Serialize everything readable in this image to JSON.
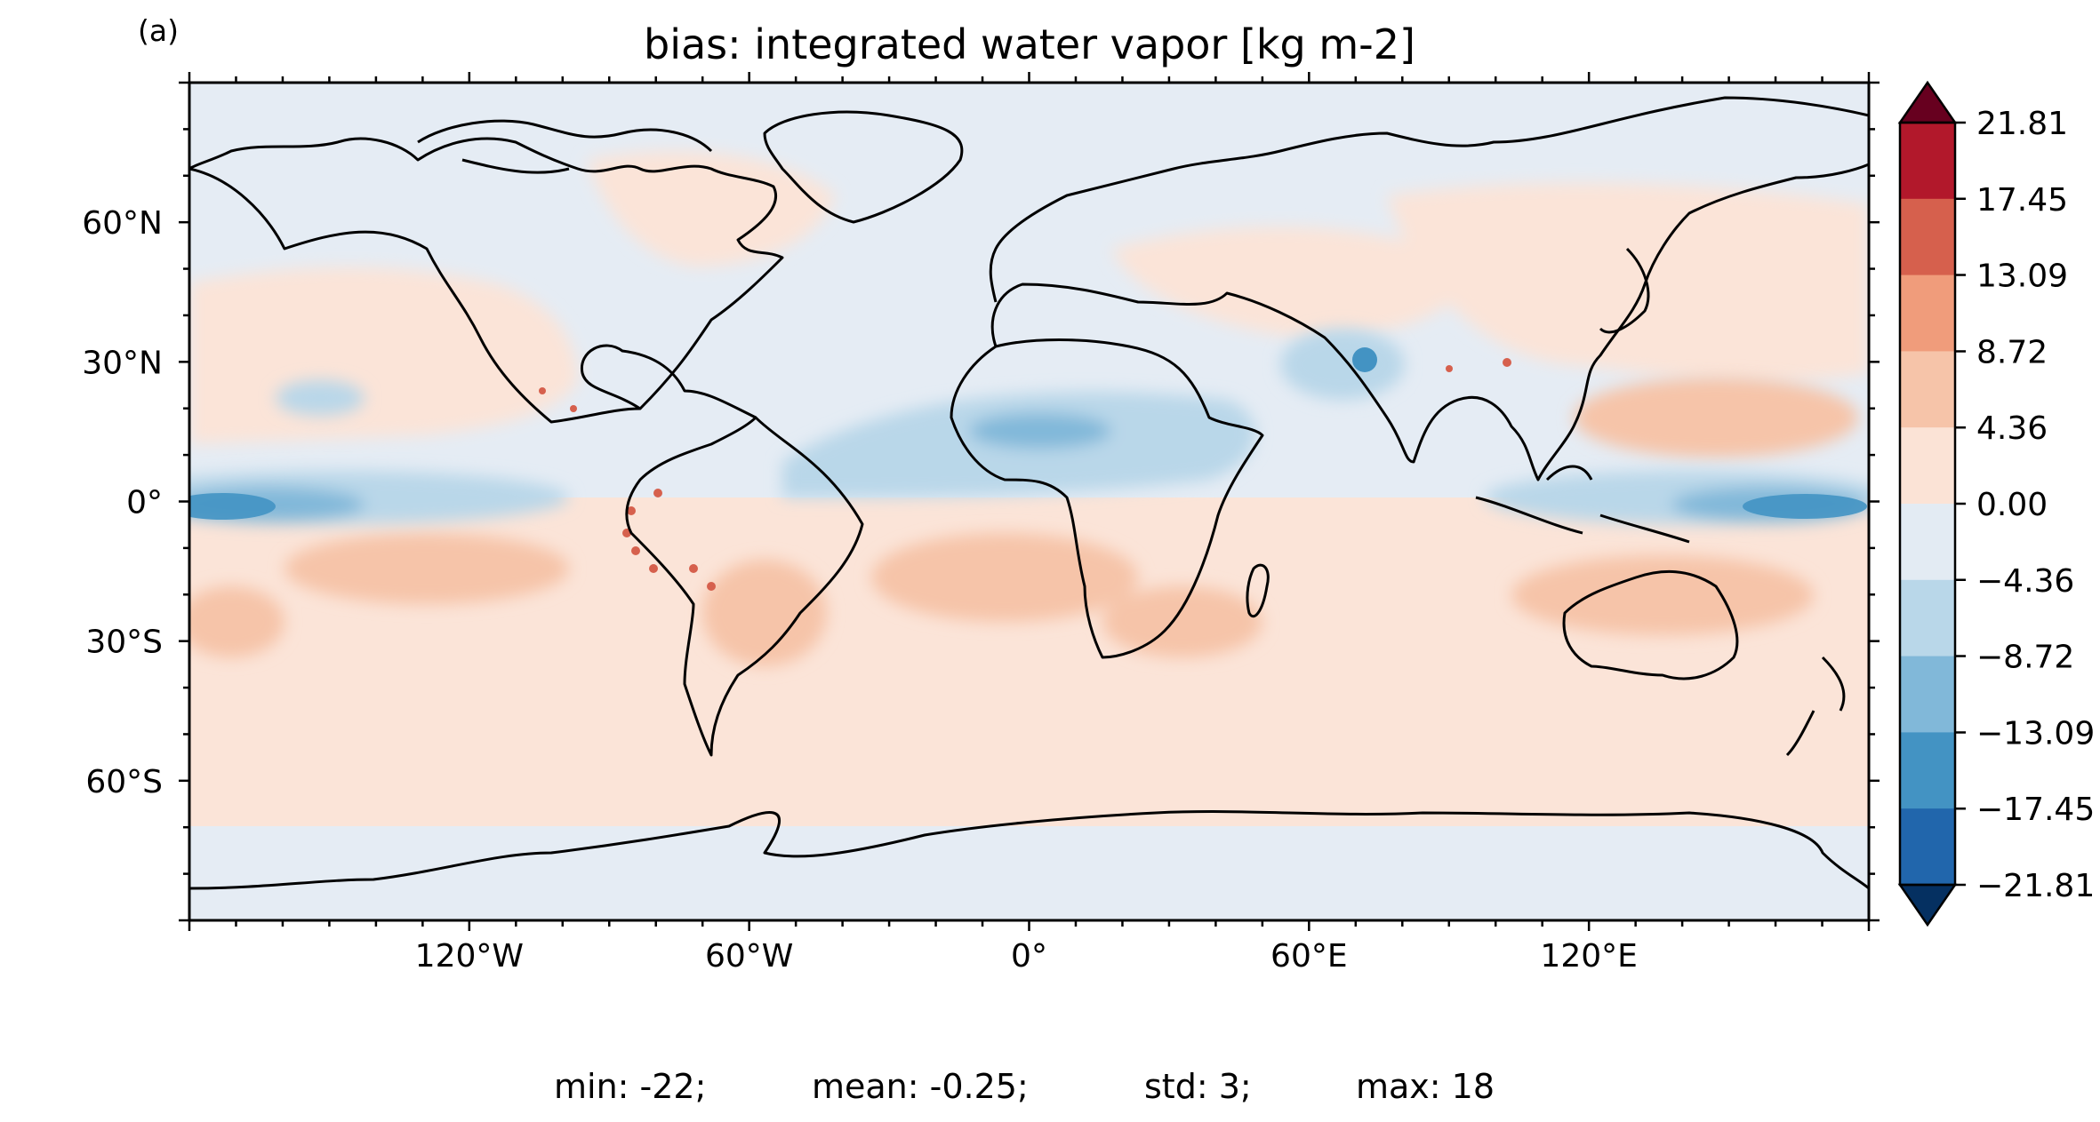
{
  "figure": {
    "panel_label": "(a)",
    "title": "bias: integrated water vapor [kg m-2]",
    "stats": [
      "min: -22;",
      "mean: -0.25;",
      "std: 3;",
      "max: 18"
    ]
  },
  "map": {
    "projection": "plate-carree",
    "lon_range": [
      -180,
      180
    ],
    "lat_range": [
      -90,
      90
    ],
    "coastlines": true,
    "colormap": "RdBu_r",
    "x_ticks": [
      {
        "value": -120,
        "label": "120°W"
      },
      {
        "value": -60,
        "label": "60°W"
      },
      {
        "value": 0,
        "label": "0°"
      },
      {
        "value": 60,
        "label": "60°E"
      },
      {
        "value": 120,
        "label": "120°E"
      }
    ],
    "y_ticks": [
      {
        "value": 60,
        "label": "60°N"
      },
      {
        "value": 30,
        "label": "30°N"
      },
      {
        "value": 0,
        "label": "0°"
      },
      {
        "value": -30,
        "label": "30°S"
      },
      {
        "value": -60,
        "label": "60°S"
      }
    ]
  },
  "colorbar": {
    "extend": "both",
    "levels": [
      {
        "value": 21.81,
        "label": "21.81"
      },
      {
        "value": 17.45,
        "label": "17.45"
      },
      {
        "value": 13.09,
        "label": "13.09"
      },
      {
        "value": 8.72,
        "label": "8.72"
      },
      {
        "value": 4.36,
        "label": "4.36"
      },
      {
        "value": 0.0,
        "label": "0.00"
      },
      {
        "value": -4.36,
        "label": "−4.36"
      },
      {
        "value": -8.72,
        "label": "−8.72"
      },
      {
        "value": -13.09,
        "label": "−13.09"
      },
      {
        "value": -17.45,
        "label": "−17.45"
      },
      {
        "value": -21.81,
        "label": "−21.81"
      }
    ],
    "colors_high_to_low": [
      "#b2182b",
      "#d6604d",
      "#f09c7b",
      "#f6c4a9",
      "#fbe3d6",
      "#e3ebf3",
      "#b9d7e9",
      "#81b8d9",
      "#4393c3",
      "#2166ac"
    ],
    "over_color": "#67001f",
    "under_color": "#053061"
  }
}
